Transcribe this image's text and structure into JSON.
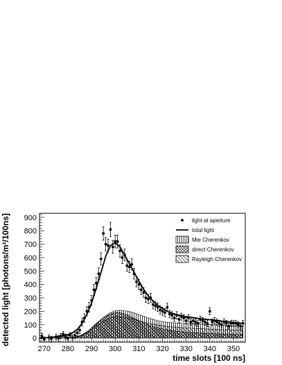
{
  "chart_data": {
    "type": "line",
    "xlabel": "time slots [100 ns]",
    "ylabel": "detected light [photons/m²/100ns]",
    "xlim": [
      268,
      355
    ],
    "ylim": [
      -30,
      930
    ],
    "xticks": [
      "270",
      "280",
      "290",
      "300",
      "310",
      "320",
      "330",
      "340",
      "350"
    ],
    "yticks": [
      "0",
      "100",
      "200",
      "300",
      "400",
      "500",
      "600",
      "700",
      "800",
      "900"
    ],
    "legend": {
      "placement": "top-right",
      "entries": [
        "light at aperture",
        "total light",
        "Mie Cherenkov",
        "direct Cherenkov",
        "Rayleigh Cherenkov"
      ]
    },
    "series": [
      {
        "name": "light at aperture",
        "style": "points-with-errorbars",
        "x": [
          269,
          270,
          272,
          273,
          275,
          276,
          277,
          278,
          279,
          280,
          281,
          282,
          283,
          284,
          285,
          286,
          287,
          288,
          289,
          290,
          291,
          292,
          293,
          294,
          295,
          296,
          297,
          298,
          299,
          300,
          301,
          302,
          303,
          304,
          305,
          306,
          307,
          308,
          309,
          310,
          311,
          312,
          313,
          314,
          315,
          316,
          317,
          318,
          319,
          320,
          321,
          322,
          323,
          324,
          325,
          326,
          327,
          328,
          329,
          330,
          331,
          332,
          333,
          334,
          335,
          336,
          337,
          338,
          339,
          340,
          341,
          342,
          343,
          344,
          345,
          346,
          347,
          348,
          349,
          350,
          351,
          352,
          353,
          354
        ],
        "y": [
          15,
          -10,
          5,
          -5,
          10,
          0,
          15,
          30,
          10,
          0,
          20,
          5,
          20,
          40,
          60,
          120,
          150,
          200,
          230,
          280,
          360,
          410,
          480,
          590,
          780,
          700,
          690,
          810,
          680,
          720,
          720,
          650,
          600,
          620,
          540,
          530,
          550,
          480,
          420,
          400,
          360,
          340,
          300,
          290,
          300,
          250,
          240,
          230,
          210,
          200,
          190,
          230,
          180,
          170,
          150,
          170,
          140,
          160,
          150,
          130,
          150,
          120,
          130,
          120,
          110,
          140,
          130,
          120,
          110,
          200,
          120,
          130,
          120,
          110,
          100,
          120,
          110,
          90,
          110,
          110,
          110,
          100,
          90,
          110
        ],
        "err": [
          20,
          20,
          20,
          20,
          20,
          20,
          20,
          20,
          20,
          20,
          20,
          20,
          22,
          24,
          26,
          30,
          32,
          34,
          36,
          38,
          40,
          42,
          44,
          46,
          50,
          50,
          48,
          52,
          48,
          48,
          48,
          46,
          44,
          44,
          42,
          42,
          42,
          40,
          38,
          38,
          36,
          36,
          34,
          34,
          34,
          32,
          32,
          32,
          30,
          30,
          30,
          30,
          28,
          28,
          26,
          28,
          26,
          26,
          26,
          24,
          26,
          24,
          24,
          24,
          24,
          24,
          24,
          24,
          24,
          26,
          24,
          24,
          24,
          24,
          22,
          24,
          22,
          22,
          22,
          22,
          22,
          22,
          22,
          22
        ]
      },
      {
        "name": "total light",
        "style": "line",
        "x": [
          268,
          270,
          272,
          274,
          276,
          278,
          280,
          282,
          284,
          286,
          288,
          290,
          292,
          294,
          296,
          298,
          300,
          302,
          304,
          306,
          308,
          310,
          312,
          314,
          316,
          318,
          320,
          322,
          324,
          326,
          328,
          330,
          332,
          334,
          336,
          338,
          340,
          342,
          344,
          346,
          348,
          350,
          352,
          354
        ],
        "y": [
          0,
          2,
          4,
          8,
          12,
          18,
          26,
          40,
          65,
          110,
          175,
          260,
          370,
          490,
          610,
          690,
          710,
          680,
          620,
          555,
          490,
          425,
          365,
          315,
          275,
          245,
          220,
          200,
          185,
          175,
          168,
          160,
          155,
          150,
          145,
          141,
          137,
          133,
          129,
          125,
          121,
          117,
          113,
          110
        ]
      },
      {
        "name": "Mie Cherenkov",
        "style": "hatched-band-vertical",
        "x": [
          268,
          272,
          276,
          280,
          283,
          286,
          289,
          292,
          295,
          298,
          300,
          302,
          304,
          306,
          308,
          310,
          312,
          315,
          318,
          321,
          324,
          327,
          330,
          333,
          336,
          340,
          344,
          348,
          352,
          354
        ],
        "y": [
          0,
          0,
          0,
          2,
          5,
          25,
          60,
          110,
          155,
          190,
          205,
          208,
          205,
          198,
          188,
          175,
          162,
          145,
          130,
          120,
          115,
          112,
          110,
          108,
          105,
          102,
          98,
          94,
          90,
          88
        ]
      },
      {
        "name": "direct Cherenkov",
        "style": "crosshatched",
        "x": [
          268,
          272,
          276,
          280,
          283,
          286,
          289,
          292,
          295,
          298,
          300,
          302,
          304,
          306,
          308,
          310,
          312,
          315,
          318,
          321,
          324,
          327,
          330,
          333,
          336,
          340,
          344,
          348,
          352,
          354
        ],
        "y": [
          0,
          0,
          0,
          2,
          5,
          24,
          58,
          105,
          148,
          180,
          192,
          190,
          180,
          165,
          148,
          130,
          113,
          92,
          76,
          64,
          56,
          50,
          45,
          41,
          38,
          35,
          32,
          29,
          27,
          26
        ]
      },
      {
        "name": "Rayleigh Cherenkov",
        "style": "hatched-diagonal",
        "x": [
          268,
          272,
          276,
          280,
          283,
          286,
          289,
          292,
          295,
          298,
          300,
          302,
          304,
          306,
          308,
          310,
          312,
          315,
          318,
          321,
          324,
          327,
          330,
          333,
          336,
          340,
          344,
          348,
          352,
          354
        ],
        "y": [
          0,
          0,
          0,
          1,
          4,
          20,
          50,
          90,
          125,
          150,
          158,
          158,
          154,
          148,
          140,
          130,
          120,
          108,
          98,
          90,
          84,
          80,
          76,
          73,
          70,
          67,
          64,
          62,
          60,
          58
        ]
      }
    ]
  }
}
